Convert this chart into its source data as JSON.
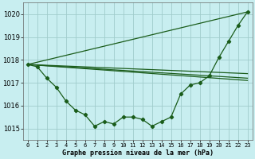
{
  "background_color": "#c8eef0",
  "grid_color": "#a0cccc",
  "line_color": "#1a5c1a",
  "marker_color": "#1a5c1a",
  "title": "Graphe pression niveau de la mer (hPa)",
  "ylim": [
    1014.5,
    1020.5
  ],
  "xlim": [
    -0.5,
    23.5
  ],
  "yticks": [
    1015,
    1016,
    1017,
    1018,
    1019,
    1020
  ],
  "xtick_labels": [
    "0",
    "1",
    "2",
    "3",
    "4",
    "5",
    "6",
    "7",
    "8",
    "9",
    "10",
    "11",
    "12",
    "13",
    "14",
    "15",
    "16",
    "17",
    "18",
    "19",
    "20",
    "21",
    "22",
    "23"
  ],
  "main_x": [
    0,
    1,
    2,
    3,
    4,
    5,
    6,
    7,
    8,
    9,
    10,
    11,
    12,
    13,
    14,
    15,
    16,
    17,
    18,
    19,
    20,
    21,
    22,
    23
  ],
  "main_y": [
    1017.8,
    1017.7,
    1017.2,
    1016.8,
    1016.2,
    1015.8,
    1015.6,
    1015.1,
    1015.3,
    1015.2,
    1015.5,
    1015.5,
    1015.4,
    1015.1,
    1015.3,
    1015.5,
    1016.5,
    1016.9,
    1017.0,
    1017.3,
    1018.1,
    1018.8,
    1019.5,
    1020.1
  ],
  "line1_x": [
    0,
    23
  ],
  "line1_y": [
    1017.8,
    1020.1
  ],
  "line2_x": [
    0,
    23
  ],
  "line2_y": [
    1017.8,
    1017.4
  ],
  "line3_x": [
    0,
    23
  ],
  "line3_y": [
    1017.8,
    1017.2
  ],
  "line4_x": [
    0,
    23
  ],
  "line4_y": [
    1017.8,
    1017.1
  ]
}
